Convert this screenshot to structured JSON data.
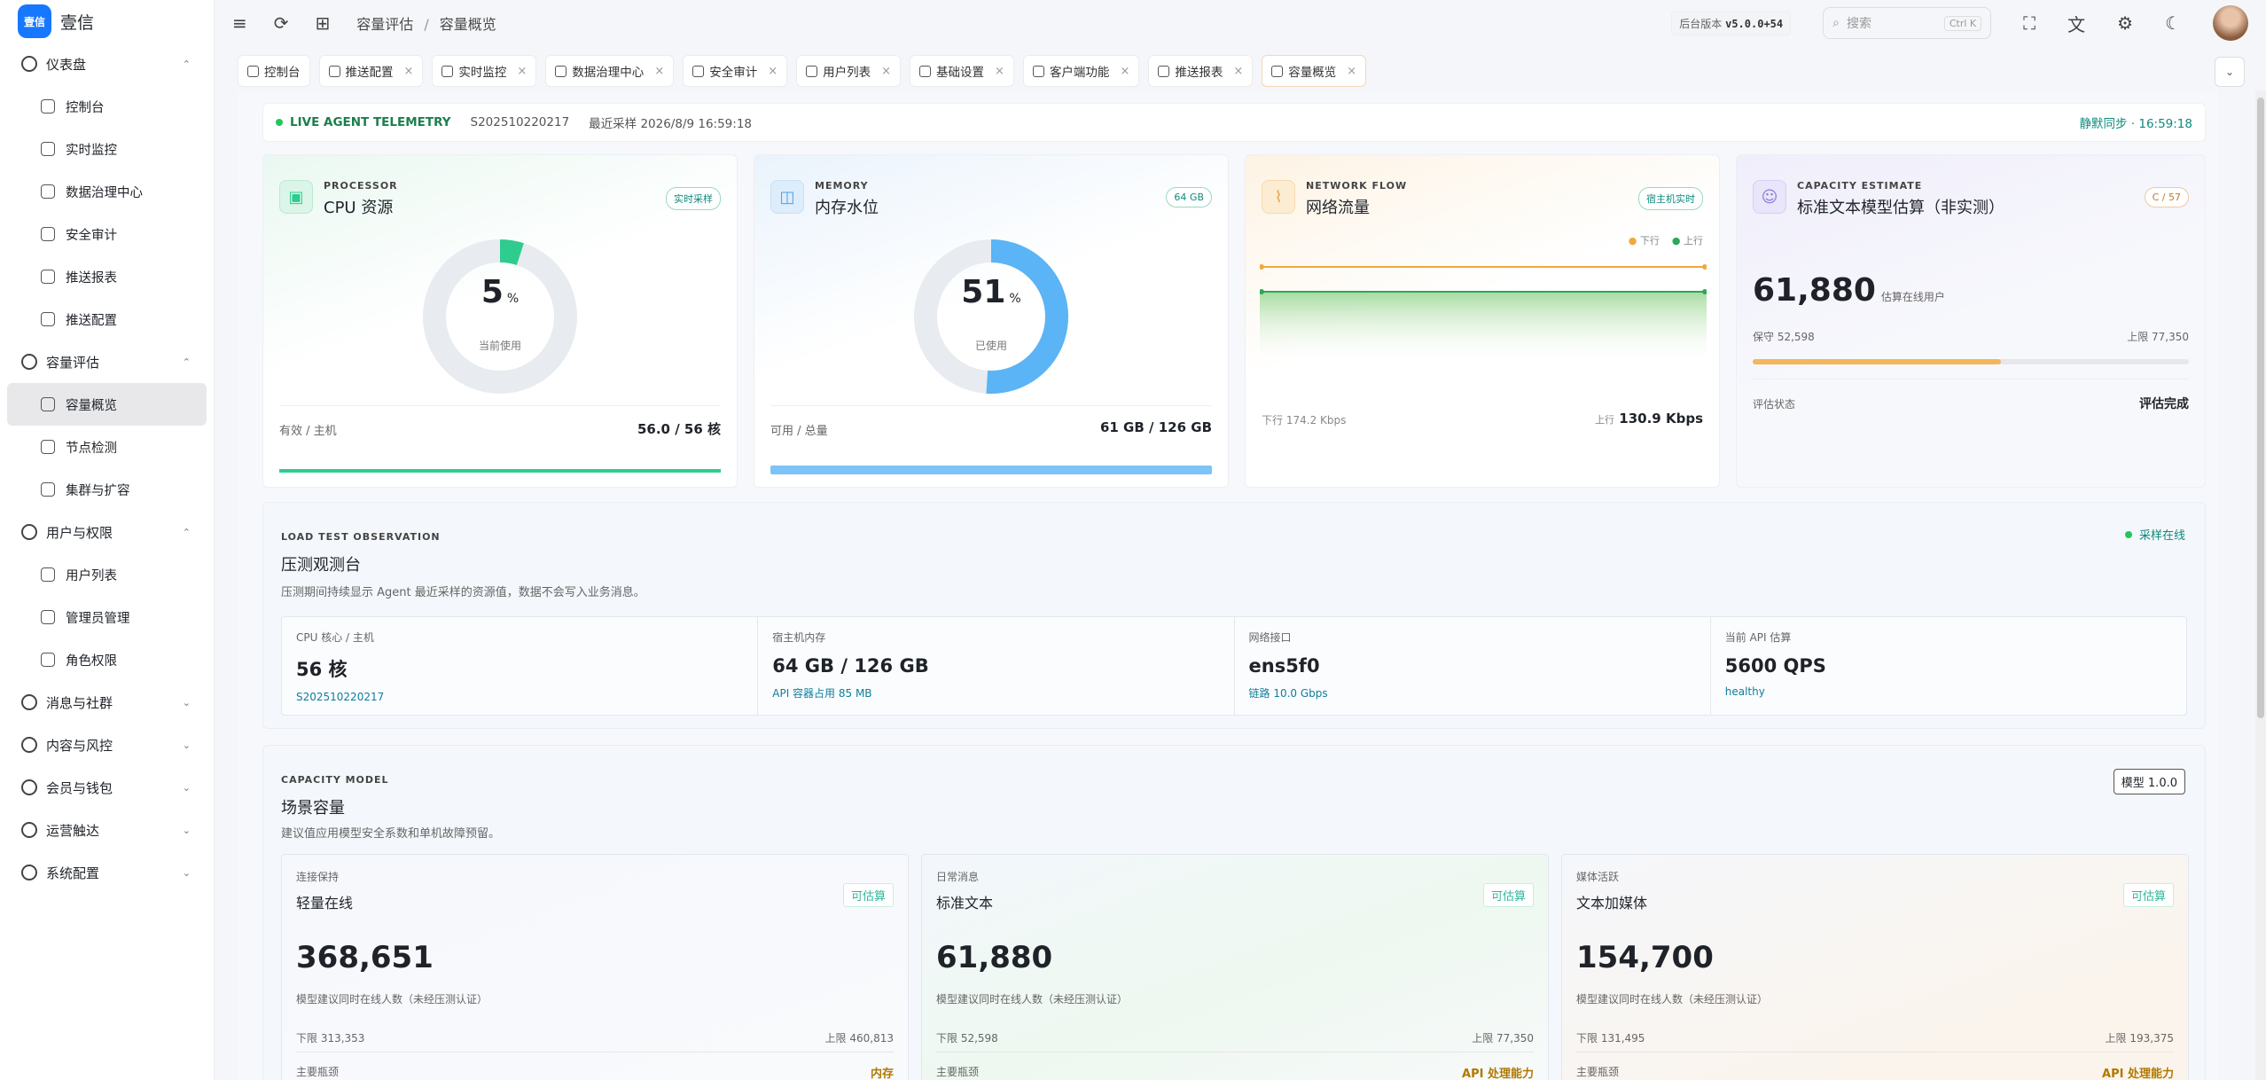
{
  "app": {
    "logo_mark": "壹信",
    "name": "壹信"
  },
  "sidebar": {
    "groups": [
      {
        "label": "仪表盘",
        "icon": "dashboard-icon",
        "items": [
          {
            "label": "控制台",
            "icon": "home-icon"
          },
          {
            "label": "实时监控",
            "icon": "heart-icon"
          },
          {
            "label": "数据治理中心",
            "icon": "database-icon"
          },
          {
            "label": "安全审计",
            "icon": "shield-icon"
          },
          {
            "label": "推送报表",
            "icon": "chart-icon"
          },
          {
            "label": "推送配置",
            "icon": "bell-icon"
          }
        ]
      },
      {
        "label": "容量评估",
        "icon": "gauge-icon",
        "items": [
          {
            "label": "容量概览",
            "icon": "gauge-icon",
            "active": true
          },
          {
            "label": "节点检测",
            "icon": "server-icon"
          },
          {
            "label": "集群与扩容",
            "icon": "layers-icon"
          }
        ]
      },
      {
        "label": "用户与权限",
        "icon": "user-icon",
        "items": [
          {
            "label": "用户列表",
            "icon": "users-icon"
          },
          {
            "label": "管理员管理",
            "icon": "user-key-icon"
          },
          {
            "label": "角色权限",
            "icon": "shield-lock-icon"
          }
        ]
      },
      {
        "label": "消息与社群",
        "icon": "message-icon",
        "collapsed": true
      },
      {
        "label": "内容与风控",
        "icon": "shield-check-icon",
        "collapsed": true
      },
      {
        "label": "会员与钱包",
        "icon": "store-icon",
        "collapsed": true
      },
      {
        "label": "运营触达",
        "icon": "send-icon",
        "collapsed": true
      },
      {
        "label": "系统配置",
        "icon": "gear-icon",
        "collapsed": true
      }
    ]
  },
  "topbar": {
    "breadcrumb": [
      "容量评估",
      "容量概览"
    ],
    "version_label": "后台版本",
    "version": "v5.0.0+54",
    "search_placeholder": "搜索",
    "search_kbd": "Ctrl K"
  },
  "tabs": [
    {
      "label": "控制台",
      "icon": "home-icon",
      "closable": false
    },
    {
      "label": "推送配置",
      "icon": "bell-icon",
      "closable": true
    },
    {
      "label": "实时监控",
      "icon": "heart-icon",
      "closable": true
    },
    {
      "label": "数据治理中心",
      "icon": "database-icon",
      "closable": true
    },
    {
      "label": "安全审计",
      "icon": "shield-icon",
      "closable": true
    },
    {
      "label": "用户列表",
      "icon": "users-icon",
      "closable": true
    },
    {
      "label": "基础设置",
      "icon": "gear-icon",
      "closable": true
    },
    {
      "label": "客户端功能",
      "icon": "toggle-icon",
      "closable": true
    },
    {
      "label": "推送报表",
      "icon": "chart-icon",
      "closable": true
    },
    {
      "label": "容量概览",
      "icon": "gauge-icon",
      "closable": true,
      "active": true
    }
  ],
  "telemetry": {
    "live": "LIVE AGENT TELEMETRY",
    "serial": "S202510220217",
    "last_sample": "最近采样 2026/8/9 16:59:18",
    "sync": "静默同步 · 16:59:18"
  },
  "cards": {
    "cpu": {
      "eyebrow": "PROCESSOR",
      "title": "CPU 资源",
      "badge": "实时采样",
      "percent": "5",
      "unit": "%",
      "percent_value": 5,
      "sub": "当前使用",
      "foot_left": "有效 / 主机",
      "foot_right": "56.0 / 56 核",
      "bar_fill": 1.0,
      "color": "#2ecc8f"
    },
    "memory": {
      "eyebrow": "MEMORY",
      "title": "内存水位",
      "badge": "64 GB",
      "percent": "51",
      "unit": "%",
      "percent_value": 51,
      "sub": "已使用",
      "foot_left": "可用 / 总量",
      "foot_right": "61 GB / 126 GB",
      "bar_fill": 1.0,
      "color": "#5ab4f5"
    },
    "network": {
      "eyebrow": "NETWORK FLOW",
      "title": "网络流量",
      "badge": "宿主机实时",
      "legend_down": "下行",
      "legend_up": "上行",
      "down_label": "下行",
      "down_value": "174.2 Kbps",
      "up_label": "上行",
      "up_value": "130.9 Kbps"
    },
    "capacity": {
      "eyebrow": "CAPACITY ESTIMATE",
      "title": "标准文本模型估算（非实测）",
      "badge": "C / 57",
      "value": "61,880",
      "value_label": "估算在线用户",
      "low": "保守 52,598",
      "high": "上限 77,350",
      "bar_fill": 0.57,
      "status_label": "评估状态",
      "status_value": "评估完成"
    }
  },
  "load_test": {
    "eyebrow": "LOAD TEST OBSERVATION",
    "title": "压测观测台",
    "desc": "压测期间持续显示 Agent 最近采样的资源值，数据不会写入业务消息。",
    "status": "采样在线",
    "stats": [
      {
        "label": "CPU 核心 / 主机",
        "value": "56 核",
        "sub": "S202510220217"
      },
      {
        "label": "宿主机内存",
        "value": "64 GB / 126 GB",
        "sub": "API 容器占用 85 MB"
      },
      {
        "label": "网络接口",
        "value": "ens5f0",
        "sub": "链路 10.0 Gbps"
      },
      {
        "label": "当前 API 估算",
        "value": "5600 QPS",
        "sub": "healthy"
      }
    ]
  },
  "capacity_model": {
    "eyebrow": "CAPACITY MODEL",
    "title": "场景容量",
    "desc": "建议值应用模型安全系数和单机故障预留。",
    "model_badge": "模型 1.0.0",
    "scenarios": [
      {
        "kind": "连接保持",
        "name": "轻量在线",
        "ok": "可估算",
        "value": "368,651",
        "hint": "模型建议同时在线人数（未经压测认证）",
        "low": "下限 313,353",
        "high": "上限 460,813",
        "bottleneck_label": "主要瓶颈",
        "bottleneck": "内存"
      },
      {
        "kind": "日常消息",
        "name": "标准文本",
        "ok": "可估算",
        "value": "61,880",
        "hint": "模型建议同时在线人数（未经压测认证）",
        "low": "下限 52,598",
        "high": "上限 77,350",
        "bottleneck_label": "主要瓶颈",
        "bottleneck": "API 处理能力"
      },
      {
        "kind": "媒体活跃",
        "name": "文本加媒体",
        "ok": "可估算",
        "value": "154,700",
        "hint": "模型建议同时在线人数（未经压测认证）",
        "low": "下限 131,495",
        "high": "上限 193,375",
        "bottleneck_label": "主要瓶颈",
        "bottleneck": "API 处理能力"
      }
    ]
  }
}
